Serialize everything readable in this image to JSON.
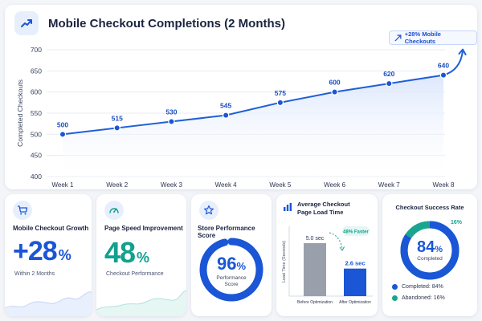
{
  "chart": {
    "title": "Mobile Checkout Completions (2 Months)",
    "badge": "+28% Mobile Checkouts",
    "ylabel": "Completed Checkouts",
    "colors": {
      "line": "#1f5fd6",
      "point": "#1a56d6",
      "area_top": "#dbe6fb",
      "grid": "#e4e8f0"
    }
  },
  "chart_data": {
    "type": "line",
    "categories": [
      "Week 1",
      "Week 2",
      "Week 3",
      "Week 4",
      "Week 5",
      "Week 6",
      "Week 7",
      "Week 8"
    ],
    "values": [
      500,
      515,
      530,
      545,
      575,
      600,
      620,
      640
    ],
    "ylabel": "Completed Checkouts",
    "ylim": [
      400,
      700
    ],
    "yticks": [
      400,
      450,
      500,
      550,
      600,
      650,
      700
    ],
    "grid": true
  },
  "cards": {
    "growth": {
      "icon": "cart-icon",
      "title": "Mobile Checkout Growth",
      "value": "+28",
      "unit": "%",
      "sub": "Within 2 Months",
      "color": "#1a56d6"
    },
    "speed": {
      "icon": "speedometer-icon",
      "title": "Page Speed Improvement",
      "value": "48",
      "unit": "%",
      "sub": "Checkout Performance",
      "color": "#12a08f"
    },
    "score": {
      "icon": "star-icon",
      "title": "Store Performance Score",
      "value": "96",
      "unit": "%",
      "caption_line1": "Performance",
      "caption_line2": "Score",
      "level": 0.96,
      "color": "#1a56d6"
    },
    "loadtime": {
      "icon": "bar-chart-icon",
      "title_line1": "Average Checkout",
      "title_line2": "Page Load Time",
      "ylabel": "Load Time (Seconds)",
      "faster_badge": "48% Faster",
      "bars": [
        {
          "label": "Before Optimization",
          "value_label": "5.0 sec",
          "value": 5.0,
          "color": "#9aa0ab"
        },
        {
          "label": "After Optimization",
          "value_label": "2.6 sec",
          "value": 2.6,
          "color": "#1a56d6"
        }
      ]
    },
    "success": {
      "title": "Checkout Success Rate",
      "value": "84",
      "unit": "%",
      "caption": "Completed",
      "abandoned_label": "16%",
      "completed_share": 0.84,
      "legend": [
        {
          "label": "Completed: 84%",
          "color": "#1a56d6"
        },
        {
          "label": "Abandoned: 16%",
          "color": "#19a58f"
        }
      ]
    }
  }
}
